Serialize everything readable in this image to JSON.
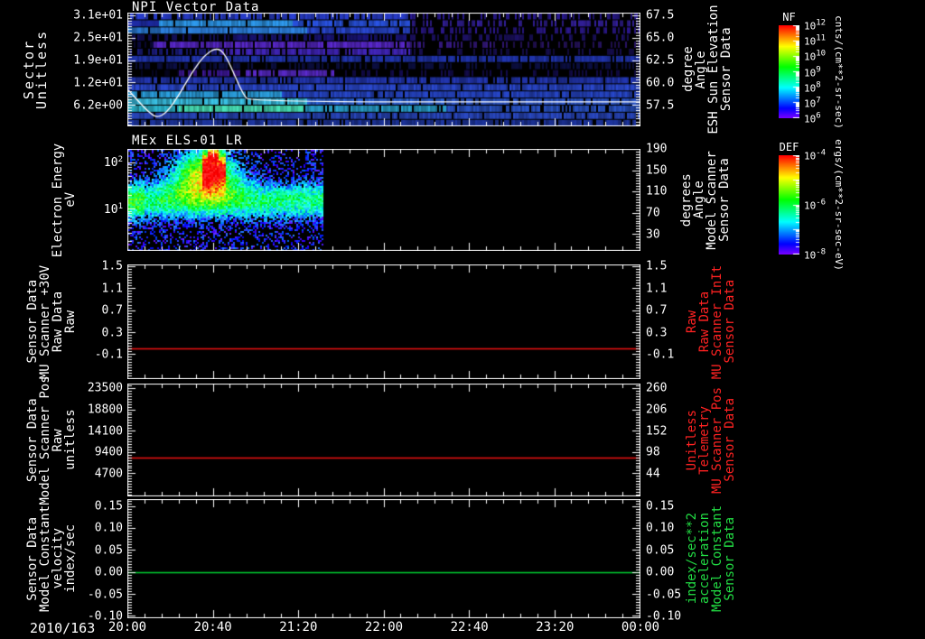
{
  "figure": {
    "date_label": "2010/163",
    "time_ticks": [
      "20:00",
      "20:40",
      "21:20",
      "22:00",
      "22:40",
      "23:20",
      "00:00"
    ],
    "background": "#000000",
    "axis_color": "#ffffff",
    "accent_red": "#ff2222",
    "accent_green": "#22dd44"
  },
  "panels": [
    {
      "title": "NPI Vector Data",
      "left_label_lines": [
        "Sector",
        "Unitless"
      ],
      "left_ticks": [
        "3.1e+01",
        "2.5e+01",
        "1.9e+01",
        "1.2e+01",
        "6.2e+00"
      ],
      "right_ticks": [
        "67.5",
        "65.0",
        "62.5",
        "60.0",
        "57.5"
      ],
      "right_label_lines": [
        "Sensor Data",
        "ESH Sun Elevation",
        "Angle",
        "degree"
      ],
      "right_label_color": "#ffffff",
      "colorbar": {
        "title": "NF",
        "tick_labels": [
          "10^12",
          "10^11",
          "10^10",
          "10^9",
          "10^8",
          "10^7",
          "10^6"
        ],
        "unit": "cnts/(cm**2-sr-sec)"
      }
    },
    {
      "title": "MEx ELS-01 LR",
      "left_label_lines": [
        "Electron Energy",
        "eV"
      ],
      "left_ticks": [
        "10^2",
        "10^1"
      ],
      "right_ticks": [
        "190",
        "150",
        "110",
        "70",
        "30"
      ],
      "right_label_lines": [
        "Sensor Data",
        "Model Scanner",
        "Angle",
        "degrees"
      ],
      "right_label_color": "#ffffff",
      "colorbar": {
        "title": "DEF",
        "tick_labels": [
          "10^-4",
          "10^-6",
          "10^-8"
        ],
        "unit": "ergs/(cm**2-sr-sec-eV)"
      }
    },
    {
      "title": "",
      "left_label_lines": [
        "Sensor Data",
        "MU Scanner +30V",
        "Raw Data",
        "Raw"
      ],
      "left_ticks": [
        "1.5",
        "1.1",
        "0.7",
        "0.3",
        "-0.1"
      ],
      "right_ticks": [
        "1.5",
        "1.1",
        "0.7",
        "0.3",
        "-0.1"
      ],
      "right_label_lines": [
        "Sensor Data",
        "MU Scanner InIt",
        "Raw Data",
        "Raw"
      ],
      "right_label_color": "#ff2222"
    },
    {
      "title": "",
      "left_label_lines": [
        "Sensor Data",
        "Model Scanner Pos",
        "Raw",
        "unitless"
      ],
      "left_ticks": [
        "23500",
        "18800",
        "14100",
        "9400",
        "4700"
      ],
      "right_ticks": [
        "260",
        "206",
        "152",
        "98",
        "44"
      ],
      "right_label_lines": [
        "Sensor Data",
        "MU Scanner Pos",
        "Telemetry",
        "Unitless"
      ],
      "right_label_color": "#ff2222"
    },
    {
      "title": "",
      "left_label_lines": [
        "Sensor Data",
        "Model Constant",
        "velocity",
        "index/sec"
      ],
      "left_ticks": [
        "0.15",
        "0.10",
        "0.05",
        "0.00",
        "-0.05",
        "-0.10"
      ],
      "right_ticks": [
        "0.15",
        "0.10",
        "0.05",
        "0.00",
        "-0.05",
        "-0.10"
      ],
      "right_label_lines": [
        "Sensor Data",
        "Model Constant",
        "acceleration",
        "index/sec**2"
      ],
      "right_label_color": "#22dd44"
    }
  ],
  "chart_data": [
    {
      "type": "spectrogram",
      "title": "NPI Vector Data",
      "x_start_label": "2010/163",
      "x_ticks": [
        "20:00",
        "20:40",
        "21:20",
        "22:00",
        "22:40",
        "23:20",
        "00:00"
      ],
      "ylabel": "Sector Unitless",
      "y_tick_labels": [
        "3.1e+01",
        "2.5e+01",
        "1.9e+01",
        "1.2e+01",
        "6.2e+00"
      ],
      "y2label": "Sensor Data ESH Sun Elevation Angle degree",
      "y2_tick_labels": [
        "67.5",
        "65.0",
        "62.5",
        "60.0",
        "57.5"
      ],
      "colorbar_title": "NF",
      "colorbar_unit": "cnts/(cm**2-sr-sec)",
      "colorbar_ticks": [
        "10^12",
        "10^11",
        "10^10",
        "10^9",
        "10^8",
        "10^7",
        "10^6"
      ],
      "overlay_curve_points": [
        [
          0,
          0.68
        ],
        [
          0.02,
          0.78
        ],
        [
          0.04,
          0.875
        ],
        [
          0.056,
          0.925
        ],
        [
          0.075,
          0.88
        ],
        [
          0.1,
          0.72
        ],
        [
          0.125,
          0.52
        ],
        [
          0.15,
          0.37
        ],
        [
          0.174,
          0.305
        ],
        [
          0.19,
          0.37
        ],
        [
          0.21,
          0.57
        ],
        [
          0.225,
          0.72
        ],
        [
          0.238,
          0.785
        ],
        [
          1,
          0.785
        ]
      ],
      "rows": [
        {
          "segs": [
            [
              0,
              0.55,
              "#2a3fd6",
              0.75
            ],
            [
              0.55,
              1,
              "#2b1a9a",
              0.4
            ]
          ]
        },
        {
          "segs": [
            [
              0,
              0.06,
              "#1f2db0",
              0.9
            ],
            [
              0.06,
              0.32,
              "#2e9bf0",
              0.95
            ],
            [
              0.32,
              0.55,
              "#2a55e8",
              0.9
            ],
            [
              0.55,
              1,
              "#34209f",
              0.45
            ]
          ]
        },
        {
          "segs": [
            [
              0,
              0.35,
              "#2e86e8",
              0.95
            ],
            [
              0.35,
              0.55,
              "#2a49d8",
              0.9
            ],
            [
              0.55,
              1,
              "#2c1890",
              0.42
            ]
          ]
        },
        {
          "segs": [
            [
              0,
              0.2,
              "#151066",
              0.5
            ],
            [
              0.2,
              0.55,
              "#1b1480",
              0.55
            ],
            [
              0.55,
              1,
              "#1d1168",
              0.3
            ]
          ]
        },
        {
          "segs": [
            [
              0,
              0.05,
              "#0c0a44",
              0.5
            ],
            [
              0.05,
              0.55,
              "#5a28cf",
              0.88
            ],
            [
              0.55,
              0.75,
              "#381a88",
              0.4
            ],
            [
              0.75,
              1,
              "#2a1468",
              0.3
            ]
          ]
        },
        {
          "segs": [
            [
              0,
              0.18,
              "#1c1e88",
              0.7
            ],
            [
              0.18,
              0.55,
              "#4326c0",
              0.85
            ],
            [
              0.55,
              1,
              "#160d50",
              0.3
            ]
          ]
        },
        {
          "segs": [
            [
              0,
              1,
              "#2136b4",
              0.85
            ]
          ]
        },
        {
          "segs": [
            [
              0,
              1,
              "#0c0f46",
              0.4
            ]
          ]
        },
        {
          "segs": [
            [
              0,
              0.1,
              "#060522",
              0.3
            ],
            [
              0.1,
              0.22,
              "#40189f",
              0.75
            ],
            [
              0.22,
              0.4,
              "#5c2bd0",
              0.85
            ],
            [
              0.4,
              1,
              "#130b50",
              0.32
            ]
          ]
        },
        {
          "segs": [
            [
              0,
              1,
              "#2438b8",
              0.88
            ]
          ]
        },
        {
          "segs": [
            [
              0,
              1,
              "#2c4ad4",
              0.9
            ]
          ]
        },
        {
          "segs": [
            [
              0,
              0.3,
              "#2ba0e0",
              0.95
            ],
            [
              0.3,
              1,
              "#2747cc",
              0.9
            ]
          ]
        },
        {
          "segs": [
            [
              0,
              0.35,
              "#3cc8ec",
              0.95
            ],
            [
              0.35,
              0.62,
              "#2a62dc",
              0.9
            ],
            [
              0.62,
              1,
              "#2a55cc",
              0.88
            ]
          ]
        },
        {
          "segs": [
            [
              0,
              0.1,
              "#2cb8d0",
              0.92
            ],
            [
              0.1,
              0.34,
              "#4ae8bc",
              0.95
            ],
            [
              0.34,
              0.62,
              "#2aa6d4",
              0.9
            ],
            [
              0.62,
              1,
              "#2a55cc",
              0.88
            ]
          ]
        },
        {
          "segs": [
            [
              0,
              1,
              "#2a49c4",
              0.9
            ]
          ]
        },
        {
          "segs": [
            [
              0,
              1,
              "#1e37a6",
              0.85
            ]
          ]
        }
      ]
    },
    {
      "type": "spectrogram",
      "title": "MEx ELS-01 LR",
      "ylabel": "Electron Energy eV",
      "yscale": "log",
      "y_tick_labels": [
        "10^2",
        "10^1"
      ],
      "y2label": "Sensor Data Model Scanner Angle degrees",
      "y2_tick_labels": [
        "190",
        "150",
        "110",
        "70",
        "30"
      ],
      "colorbar_title": "DEF",
      "colorbar_unit": "ergs/(cm**2-sr-sec-eV)",
      "colorbar_ticks": [
        "10^-4",
        "10^-6",
        "10^-8"
      ],
      "data_end_frac": 0.38,
      "features": {
        "bandY": 0.5,
        "bandS": 0.13,
        "blobX": 0.15,
        "blobSX": 0.045,
        "blobY": 0.24,
        "blobSY": 0.17,
        "coreX0": 0.146,
        "coreX1": 0.19,
        "coreY": 0.18,
        "coreS": 0.13,
        "description": "Electron flux burst ~20:25-20:45 reaching red near 1e-4; persistent green band at 10-20 eV until ~21:30; no data afterwards"
      }
    },
    {
      "type": "line",
      "series": "Sensor Data MU Scanner +30V Raw Data Raw",
      "value": 0.0,
      "color": "#ee1111",
      "y_ticks": [
        1.5,
        1.1,
        0.7,
        0.3,
        -0.1
      ]
    },
    {
      "type": "line",
      "series": "Sensor Data Model Scanner Pos Raw unitless",
      "value": 8100,
      "color": "#ee1111",
      "y_ticks": [
        23500,
        18800,
        14100,
        9400,
        4700
      ],
      "y2_ticks": [
        260,
        206,
        152,
        98,
        44
      ]
    },
    {
      "type": "line",
      "series": "Sensor Data Model Constant velocity index/sec",
      "value": 0.0,
      "color": "#00d030",
      "y_ticks": [
        0.15,
        0.1,
        0.05,
        0.0,
        -0.05,
        -0.1
      ]
    }
  ]
}
